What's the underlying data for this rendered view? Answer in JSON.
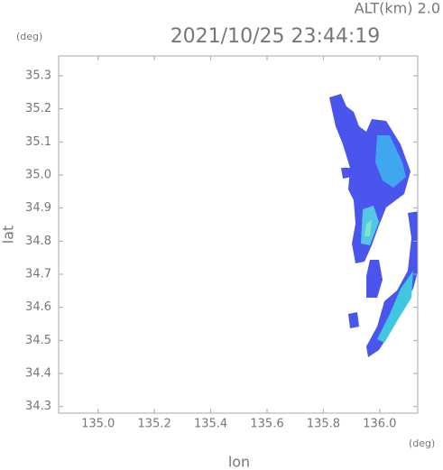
{
  "chart_data": {
    "type": "radar",
    "title": "2021/10/25 23:44:19",
    "annotation": "ALT(km) 2.0",
    "xlabel": "lon",
    "ylabel": "lat",
    "xunit": "(deg)",
    "yunit": "(deg)",
    "xlim": [
      134.86,
      136.135
    ],
    "ylim": [
      34.28,
      35.36
    ],
    "xticks": [
      {
        "value": 135,
        "label": "135.0"
      },
      135.2,
      135.4,
      135.6,
      135.8,
      {
        "value": 136,
        "label": "136.0"
      }
    ],
    "yticks": [
      34.3,
      34.4,
      34.5,
      34.6,
      34.7,
      34.8,
      34.9,
      {
        "value": 35,
        "label": "35.0"
      },
      35.1,
      35.2,
      35.3
    ],
    "grid": false
  }
}
